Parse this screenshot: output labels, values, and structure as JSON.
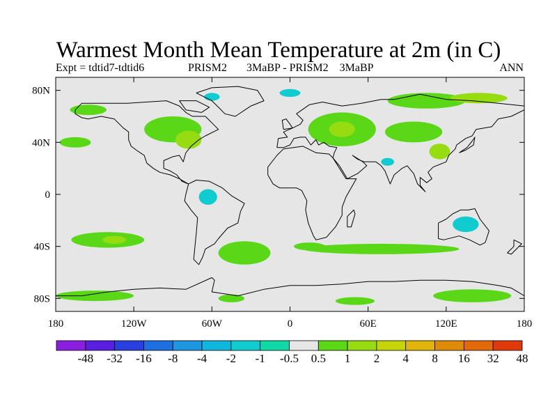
{
  "header": {
    "title": "Warmest Month Mean Temperature at 2m (in C)",
    "expt": "Expt = tdtid7-tdtid6",
    "center_a": "PRISM2",
    "center_b": "3MaBP - PRISM2    3MaBP",
    "right": "ANN"
  },
  "map": {
    "lon_range": [
      -180,
      180
    ],
    "lat_range": [
      -90,
      90
    ],
    "lat_ticks": [
      {
        "value": 80,
        "label": "80N"
      },
      {
        "value": 40,
        "label": "40N"
      },
      {
        "value": 0,
        "label": "0"
      },
      {
        "value": -40,
        "label": "40S"
      },
      {
        "value": -80,
        "label": "80S"
      }
    ],
    "lon_ticks": [
      {
        "value": -180,
        "label": "180"
      },
      {
        "value": -120,
        "label": "120W"
      },
      {
        "value": -60,
        "label": "60W"
      },
      {
        "value": 0,
        "label": "0"
      },
      {
        "value": 60,
        "label": "60E"
      },
      {
        "value": 120,
        "label": "120E"
      },
      {
        "value": 180,
        "label": "180"
      }
    ],
    "background_color": "#e6e6e6",
    "coast_color": "#000000"
  },
  "colorbar": {
    "labels": [
      "-48",
      "-32",
      "-16",
      "-8",
      "-4",
      "-2",
      "-1",
      "-0.5",
      "0.5",
      "1",
      "2",
      "4",
      "8",
      "16",
      "32",
      "48"
    ],
    "colors": [
      "#8a1fe0",
      "#5a1ee0",
      "#2a3fe0",
      "#1f6fe0",
      "#1f96e0",
      "#10b6dc",
      "#10ccd0",
      "#10d8a8",
      "#e6e6e6",
      "#5ad818",
      "#96dc10",
      "#c8d40a",
      "#e0b40a",
      "#e08a0a",
      "#e06a0a",
      "#e03a0a"
    ]
  },
  "regions": [
    {
      "name": "n-america-mid",
      "lon": -90,
      "lat": 50,
      "rx": 22,
      "ry": 10,
      "color": "#5ad818"
    },
    {
      "name": "n-america-east",
      "lon": -78,
      "lat": 42,
      "rx": 10,
      "ry": 7,
      "color": "#96dc10"
    },
    {
      "name": "alaska",
      "lon": -155,
      "lat": 65,
      "rx": 14,
      "ry": 4,
      "color": "#5ad818"
    },
    {
      "name": "n-pacific-east",
      "lon": -165,
      "lat": 40,
      "rx": 12,
      "ry": 4,
      "color": "#5ad818"
    },
    {
      "name": "greenland-edge",
      "lon": -60,
      "lat": 75,
      "rx": 6,
      "ry": 3,
      "color": "#10ccd0"
    },
    {
      "name": "arctic-atl",
      "lon": 0,
      "lat": 78,
      "rx": 8,
      "ry": 3,
      "color": "#10ccd0"
    },
    {
      "name": "eurasia-west",
      "lon": 40,
      "lat": 50,
      "rx": 26,
      "ry": 13,
      "color": "#5ad818"
    },
    {
      "name": "eurasia-west-core",
      "lon": 40,
      "lat": 50,
      "rx": 10,
      "ry": 6,
      "color": "#96dc10"
    },
    {
      "name": "siberia-north",
      "lon": 105,
      "lat": 72,
      "rx": 30,
      "ry": 6,
      "color": "#5ad818"
    },
    {
      "name": "siberia-east",
      "lon": 145,
      "lat": 74,
      "rx": 22,
      "ry": 4,
      "color": "#96dc10"
    },
    {
      "name": "asia-central",
      "lon": 95,
      "lat": 48,
      "rx": 22,
      "ry": 8,
      "color": "#5ad818"
    },
    {
      "name": "china",
      "lon": 115,
      "lat": 33,
      "rx": 8,
      "ry": 6,
      "color": "#96dc10"
    },
    {
      "name": "india-cold",
      "lon": 75,
      "lat": 25,
      "rx": 5,
      "ry": 3,
      "color": "#10ccd0"
    },
    {
      "name": "amazon",
      "lon": -63,
      "lat": -2,
      "rx": 7,
      "ry": 6,
      "color": "#10ccd0"
    },
    {
      "name": "s-pacific",
      "lon": -140,
      "lat": -35,
      "rx": 28,
      "ry": 6,
      "color": "#5ad818"
    },
    {
      "name": "s-pacific-core",
      "lon": -135,
      "lat": -35,
      "rx": 9,
      "ry": 3,
      "color": "#96dc10"
    },
    {
      "name": "s-atlantic",
      "lon": -35,
      "lat": -45,
      "rx": 20,
      "ry": 9,
      "color": "#5ad818"
    },
    {
      "name": "s-indian",
      "lon": 70,
      "lat": -42,
      "rx": 60,
      "ry": 4,
      "color": "#5ad818"
    },
    {
      "name": "s-indian-west",
      "lon": 15,
      "lat": -40,
      "rx": 12,
      "ry": 3,
      "color": "#5ad818"
    },
    {
      "name": "australia",
      "lon": 135,
      "lat": -23,
      "rx": 10,
      "ry": 6,
      "color": "#10ccd0"
    },
    {
      "name": "antarctic-west",
      "lon": -150,
      "lat": -78,
      "rx": 30,
      "ry": 4,
      "color": "#5ad818"
    },
    {
      "name": "antarctic-east",
      "lon": 140,
      "lat": -78,
      "rx": 30,
      "ry": 5,
      "color": "#5ad818"
    },
    {
      "name": "antarctic-mid",
      "lon": 50,
      "lat": -82,
      "rx": 15,
      "ry": 3,
      "color": "#5ad818"
    },
    {
      "name": "antarctic-weddell",
      "lon": -45,
      "lat": -80,
      "rx": 10,
      "ry": 3,
      "color": "#5ad818"
    }
  ],
  "coastlines": [
    {
      "name": "north-america",
      "points": [
        [
          -165,
          65
        ],
        [
          -160,
          70
        ],
        [
          -140,
          70
        ],
        [
          -125,
          70
        ],
        [
          -95,
          72
        ],
        [
          -85,
          68
        ],
        [
          -80,
          63
        ],
        [
          -75,
          60
        ],
        [
          -65,
          60
        ],
        [
          -60,
          55
        ],
        [
          -55,
          50
        ],
        [
          -65,
          45
        ],
        [
          -70,
          42
        ],
        [
          -76,
          37
        ],
        [
          -80,
          32
        ],
        [
          -82,
          25
        ],
        [
          -85,
          30
        ],
        [
          -90,
          29
        ],
        [
          -97,
          26
        ],
        [
          -97,
          20
        ],
        [
          -92,
          18
        ],
        [
          -87,
          15
        ],
        [
          -83,
          10
        ],
        [
          -78,
          8
        ],
        [
          -85,
          12
        ],
        [
          -92,
          15
        ],
        [
          -100,
          17
        ],
        [
          -105,
          20
        ],
        [
          -110,
          24
        ],
        [
          -112,
          30
        ],
        [
          -115,
          32
        ],
        [
          -118,
          34
        ],
        [
          -122,
          37
        ],
        [
          -124,
          42
        ],
        [
          -124,
          48
        ],
        [
          -128,
          51
        ],
        [
          -135,
          58
        ],
        [
          -145,
          60
        ],
        [
          -155,
          58
        ],
        [
          -160,
          59
        ],
        [
          -165,
          62
        ],
        [
          -165,
          65
        ]
      ]
    },
    {
      "name": "greenland",
      "points": [
        [
          -72,
          78
        ],
        [
          -60,
          82
        ],
        [
          -40,
          83
        ],
        [
          -25,
          80
        ],
        [
          -20,
          72
        ],
        [
          -30,
          68
        ],
        [
          -42,
          60
        ],
        [
          -50,
          62
        ],
        [
          -55,
          67
        ],
        [
          -60,
          72
        ],
        [
          -72,
          78
        ]
      ]
    },
    {
      "name": "south-america",
      "points": [
        [
          -78,
          8
        ],
        [
          -72,
          11
        ],
        [
          -62,
          10
        ],
        [
          -52,
          5
        ],
        [
          -45,
          -1
        ],
        [
          -35,
          -7
        ],
        [
          -38,
          -13
        ],
        [
          -40,
          -22
        ],
        [
          -48,
          -26
        ],
        [
          -55,
          -34
        ],
        [
          -58,
          -38
        ],
        [
          -65,
          -42
        ],
        [
          -67,
          -48
        ],
        [
          -70,
          -54
        ],
        [
          -74,
          -50
        ],
        [
          -73,
          -40
        ],
        [
          -72,
          -30
        ],
        [
          -71,
          -18
        ],
        [
          -76,
          -12
        ],
        [
          -81,
          -5
        ],
        [
          -80,
          0
        ],
        [
          -78,
          8
        ]
      ]
    },
    {
      "name": "africa",
      "points": [
        [
          -17,
          15
        ],
        [
          -17,
          21
        ],
        [
          -10,
          30
        ],
        [
          -5,
          35
        ],
        [
          10,
          37
        ],
        [
          20,
          32
        ],
        [
          30,
          31
        ],
        [
          33,
          28
        ],
        [
          43,
          12
        ],
        [
          51,
          12
        ],
        [
          43,
          -2
        ],
        [
          40,
          -10
        ],
        [
          40,
          -16
        ],
        [
          35,
          -25
        ],
        [
          28,
          -33
        ],
        [
          20,
          -35
        ],
        [
          18,
          -32
        ],
        [
          14,
          -22
        ],
        [
          12,
          -12
        ],
        [
          13,
          -5
        ],
        [
          9,
          3
        ],
        [
          5,
          5
        ],
        [
          -5,
          5
        ],
        [
          -8,
          5
        ],
        [
          -13,
          8
        ],
        [
          -17,
          15
        ]
      ]
    },
    {
      "name": "eurasia",
      "points": [
        [
          -10,
          36
        ],
        [
          -9,
          43
        ],
        [
          -2,
          44
        ],
        [
          -5,
          48
        ],
        [
          2,
          51
        ],
        [
          8,
          54
        ],
        [
          10,
          57
        ],
        [
          5,
          62
        ],
        [
          15,
          69
        ],
        [
          25,
          71
        ],
        [
          40,
          68
        ],
        [
          55,
          70
        ],
        [
          70,
          73
        ],
        [
          80,
          73
        ],
        [
          100,
          77
        ],
        [
          120,
          73
        ],
        [
          140,
          72
        ],
        [
          160,
          70
        ],
        [
          180,
          68
        ],
        [
          180,
          65
        ],
        [
          170,
          60
        ],
        [
          160,
          58
        ],
        [
          155,
          52
        ],
        [
          143,
          50
        ],
        [
          140,
          45
        ],
        [
          135,
          43
        ],
        [
          128,
          38
        ],
        [
          127,
          35
        ],
        [
          122,
          30
        ],
        [
          120,
          25
        ],
        [
          110,
          21
        ],
        [
          106,
          17
        ],
        [
          109,
          12
        ],
        [
          105,
          9
        ],
        [
          100,
          13
        ],
        [
          100,
          7
        ],
        [
          104,
          2
        ],
        [
          98,
          8
        ],
        [
          95,
          16
        ],
        [
          90,
          22
        ],
        [
          86,
          20
        ],
        [
          80,
          15
        ],
        [
          77,
          8
        ],
        [
          73,
          18
        ],
        [
          70,
          22
        ],
        [
          66,
          25
        ],
        [
          57,
          25
        ],
        [
          52,
          27
        ],
        [
          48,
          30
        ],
        [
          56,
          25
        ],
        [
          59,
          22
        ],
        [
          52,
          16
        ],
        [
          44,
          12
        ],
        [
          38,
          22
        ],
        [
          33,
          28
        ],
        [
          34,
          32
        ],
        [
          36,
          36
        ],
        [
          30,
          37
        ],
        [
          26,
          40
        ],
        [
          22,
          38
        ],
        [
          20,
          42
        ],
        [
          16,
          38
        ],
        [
          12,
          44
        ],
        [
          8,
          44
        ],
        [
          3,
          43
        ],
        [
          0,
          38
        ],
        [
          -5,
          36
        ],
        [
          -10,
          36
        ]
      ]
    },
    {
      "name": "australia",
      "points": [
        [
          114,
          -22
        ],
        [
          114,
          -34
        ],
        [
          118,
          -35
        ],
        [
          130,
          -32
        ],
        [
          138,
          -35
        ],
        [
          146,
          -39
        ],
        [
          150,
          -37
        ],
        [
          153,
          -28
        ],
        [
          146,
          -19
        ],
        [
          142,
          -11
        ],
        [
          137,
          -12
        ],
        [
          131,
          -12
        ],
        [
          125,
          -15
        ],
        [
          120,
          -19
        ],
        [
          114,
          -22
        ]
      ]
    },
    {
      "name": "antarctica",
      "points": [
        [
          -180,
          -78
        ],
        [
          -160,
          -78
        ],
        [
          -140,
          -75
        ],
        [
          -120,
          -73
        ],
        [
          -100,
          -72
        ],
        [
          -80,
          -73
        ],
        [
          -60,
          -64
        ],
        [
          -58,
          -66
        ],
        [
          -60,
          -75
        ],
        [
          -40,
          -78
        ],
        [
          -20,
          -73
        ],
        [
          0,
          -70
        ],
        [
          20,
          -70
        ],
        [
          40,
          -69
        ],
        [
          60,
          -67
        ],
        [
          80,
          -67
        ],
        [
          100,
          -66
        ],
        [
          120,
          -66
        ],
        [
          140,
          -67
        ],
        [
          160,
          -70
        ],
        [
          170,
          -72
        ],
        [
          180,
          -78
        ]
      ]
    },
    {
      "name": "madagascar",
      "points": [
        [
          44,
          -25
        ],
        [
          47,
          -25
        ],
        [
          50,
          -15
        ],
        [
          49,
          -12
        ],
        [
          44,
          -17
        ],
        [
          44,
          -25
        ]
      ]
    },
    {
      "name": "uk",
      "points": [
        [
          -5,
          50
        ],
        [
          2,
          51
        ],
        [
          0,
          54
        ],
        [
          -3,
          58
        ],
        [
          -6,
          57
        ],
        [
          -5,
          50
        ]
      ]
    },
    {
      "name": "japan",
      "points": [
        [
          130,
          32
        ],
        [
          135,
          34
        ],
        [
          141,
          38
        ],
        [
          142,
          44
        ],
        [
          140,
          41
        ],
        [
          136,
          36
        ],
        [
          130,
          32
        ]
      ]
    },
    {
      "name": "new-zealand",
      "points": [
        [
          172,
          -35
        ],
        [
          178,
          -38
        ],
        [
          175,
          -41
        ],
        [
          170,
          -46
        ],
        [
          167,
          -45
        ],
        [
          172,
          -40
        ],
        [
          172,
          -35
        ]
      ]
    },
    {
      "name": "baffin",
      "points": [
        [
          -80,
          65
        ],
        [
          -68,
          63
        ],
        [
          -62,
          67
        ],
        [
          -72,
          72
        ],
        [
          -85,
          72
        ],
        [
          -80,
          65
        ]
      ]
    }
  ]
}
